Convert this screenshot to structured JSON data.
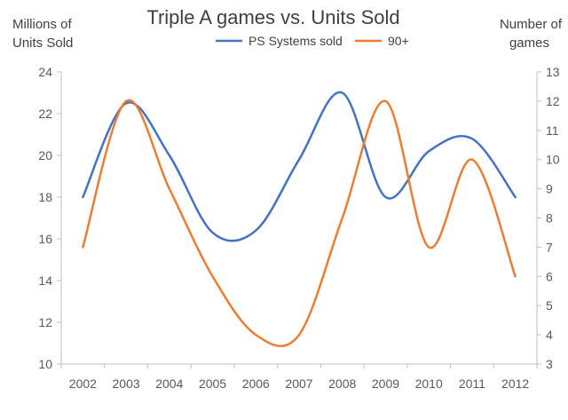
{
  "chart_data": {
    "type": "line",
    "title": "Triple A games vs. Units Sold",
    "ylabel_left": [
      "Millions of",
      "Units Sold"
    ],
    "ylabel_right": [
      "Number of",
      "games"
    ],
    "categories": [
      "2002",
      "2003",
      "2004",
      "2005",
      "2006",
      "2007",
      "2008",
      "2009",
      "2010",
      "2011",
      "2012"
    ],
    "y_left_lim": [
      10,
      24
    ],
    "y_left_ticks": [
      "10",
      "12",
      "14",
      "16",
      "18",
      "20",
      "22",
      "24"
    ],
    "y_right_lim": [
      3,
      13
    ],
    "y_right_ticks": [
      "3",
      "4",
      "5",
      "6",
      "7",
      "8",
      "9",
      "10",
      "11",
      "12",
      "13"
    ],
    "grid": false,
    "legend_position": "top",
    "smooth": true,
    "series": [
      {
        "name": "PS Systems sold",
        "axis": "left",
        "color": "#4472C4",
        "values": [
          18,
          22.5,
          20,
          16.3,
          16.4,
          19.8,
          23,
          18,
          20.2,
          20.8,
          18
        ]
      },
      {
        "name": "90+",
        "axis": "right",
        "color": "#ED7D31",
        "values": [
          7,
          12,
          9,
          6,
          4,
          4,
          8,
          12,
          7,
          10,
          6
        ]
      }
    ]
  }
}
